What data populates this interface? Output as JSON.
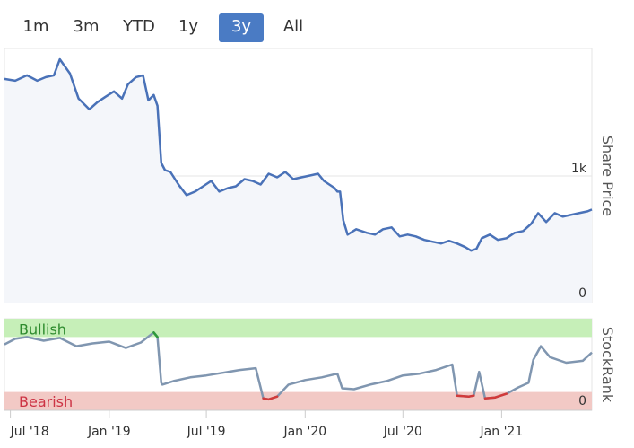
{
  "range_selector": {
    "buttons": [
      {
        "label": "1m",
        "active": false
      },
      {
        "label": "3m",
        "active": false
      },
      {
        "label": "YTD",
        "active": false
      },
      {
        "label": "1y",
        "active": false
      },
      {
        "label": "3y",
        "active": true
      },
      {
        "label": "All",
        "active": false
      }
    ]
  },
  "colors": {
    "price_line": "#4a72b8",
    "price_fill": "#f4f6fa",
    "rank_line": "#8096b0",
    "rank_bull_segment": "#2e9a3a",
    "rank_bear_segment": "#d23a3a",
    "bull_zone": "#c6efb8",
    "bear_zone": "#f2c9c5",
    "bull_text": "#2e8b2e",
    "bear_text": "#cc3344",
    "active_button": "#4a7bc4"
  },
  "chart_data": [
    {
      "type": "area",
      "ylabel": "Share Price",
      "y_ticks": [
        {
          "value": 0,
          "label": "0"
        },
        {
          "value": 1000,
          "label": "1k"
        }
      ],
      "ylim": [
        0,
        1420
      ],
      "xlim": [
        "2018-06-20",
        "2021-06-18"
      ],
      "grid": true,
      "series": [
        {
          "x": [
            "2018-06-20",
            "2018-07-10",
            "2018-08-01",
            "2018-08-20",
            "2018-09-05",
            "2018-09-20",
            "2018-10-01",
            "2018-10-20",
            "2018-11-05",
            "2018-11-25",
            "2018-12-10",
            "2018-12-25",
            "2019-01-10",
            "2019-01-25",
            "2019-02-05",
            "2019-02-20",
            "2019-03-05",
            "2019-03-15",
            "2019-03-25",
            "2019-04-01",
            "2019-04-08",
            "2019-04-15",
            "2019-04-25",
            "2019-05-10",
            "2019-05-25",
            "2019-06-10",
            "2019-06-25",
            "2019-07-10",
            "2019-07-25",
            "2019-08-10",
            "2019-08-25",
            "2019-09-10",
            "2019-09-25",
            "2019-10-10",
            "2019-10-25",
            "2019-11-10",
            "2019-11-25",
            "2019-12-10",
            "2019-12-25",
            "2020-01-10",
            "2020-01-25",
            "2020-02-05",
            "2020-02-15",
            "2020-02-25",
            "2020-03-01",
            "2020-03-06",
            "2020-03-12",
            "2020-03-20",
            "2020-04-05",
            "2020-04-25",
            "2020-05-10",
            "2020-05-25",
            "2020-06-10",
            "2020-06-25",
            "2020-07-10",
            "2020-07-25",
            "2020-08-10",
            "2020-08-25",
            "2020-09-10",
            "2020-09-25",
            "2020-10-10",
            "2020-10-25",
            "2020-11-05",
            "2020-11-15",
            "2020-11-25",
            "2020-12-10",
            "2020-12-25",
            "2021-01-10",
            "2021-01-25",
            "2021-02-10",
            "2021-02-25",
            "2021-03-10",
            "2021-03-25",
            "2021-04-10",
            "2021-04-25",
            "2021-05-10",
            "2021-05-25",
            "2021-06-10",
            "2021-06-18"
          ],
          "values": [
            1250,
            1240,
            1270,
            1240,
            1260,
            1270,
            1360,
            1280,
            1140,
            1080,
            1120,
            1150,
            1180,
            1140,
            1220,
            1260,
            1270,
            1130,
            1160,
            1100,
            780,
            740,
            730,
            660,
            600,
            620,
            650,
            680,
            620,
            640,
            650,
            690,
            680,
            660,
            720,
            700,
            730,
            690,
            700,
            710,
            720,
            680,
            660,
            640,
            620,
            620,
            460,
            380,
            410,
            390,
            380,
            410,
            420,
            370,
            380,
            370,
            350,
            340,
            330,
            345,
            330,
            310,
            290,
            300,
            360,
            380,
            350,
            360,
            390,
            400,
            440,
            500,
            450,
            500,
            480,
            490,
            500,
            510,
            520
          ]
        }
      ]
    },
    {
      "type": "line",
      "ylabel": "StockRank",
      "y_ticks": [
        {
          "value": 0,
          "label": "0"
        }
      ],
      "ylim": [
        0,
        100
      ],
      "zones": [
        {
          "label": "Bullish",
          "from": 80,
          "to": 100
        },
        {
          "label": "Bearish",
          "from": 0,
          "to": 20
        }
      ],
      "x_ticks": [
        "Jul '18",
        "Jan '19",
        "Jul '19",
        "Jan '20",
        "Jul '20",
        "Jan '21"
      ],
      "x_tick_dates": [
        "2018-07-01",
        "2019-01-01",
        "2019-07-01",
        "2020-01-01",
        "2020-07-01",
        "2021-01-01"
      ],
      "series": [
        {
          "x": [
            "2018-06-20",
            "2018-07-10",
            "2018-08-01",
            "2018-09-01",
            "2018-10-01",
            "2018-11-01",
            "2018-12-01",
            "2019-01-01",
            "2019-02-01",
            "2019-03-01",
            "2019-03-25",
            "2019-04-01",
            "2019-04-08",
            "2019-04-10",
            "2019-05-01",
            "2019-06-01",
            "2019-07-01",
            "2019-08-01",
            "2019-09-01",
            "2019-10-01",
            "2019-10-15",
            "2019-10-25",
            "2019-11-10",
            "2019-12-01",
            "2020-01-01",
            "2020-02-01",
            "2020-03-01",
            "2020-03-10",
            "2020-04-01",
            "2020-05-01",
            "2020-06-01",
            "2020-07-01",
            "2020-08-01",
            "2020-09-01",
            "2020-10-01",
            "2020-10-10",
            "2020-11-01",
            "2020-11-10",
            "2020-11-20",
            "2020-12-01",
            "2020-12-20",
            "2021-01-10",
            "2021-02-01",
            "2021-02-20",
            "2021-03-01",
            "2021-03-15",
            "2021-04-01",
            "2021-05-01",
            "2021-06-01",
            "2021-06-18"
          ],
          "values": [
            72,
            78,
            80,
            76,
            79,
            70,
            73,
            75,
            68,
            74,
            85,
            80,
            30,
            28,
            32,
            36,
            38,
            41,
            44,
            46,
            13,
            12,
            15,
            28,
            33,
            36,
            40,
            24,
            23,
            28,
            32,
            38,
            40,
            44,
            50,
            16,
            15,
            16,
            42,
            13,
            14,
            18,
            25,
            30,
            55,
            70,
            58,
            52,
            54,
            63
          ]
        }
      ]
    }
  ]
}
